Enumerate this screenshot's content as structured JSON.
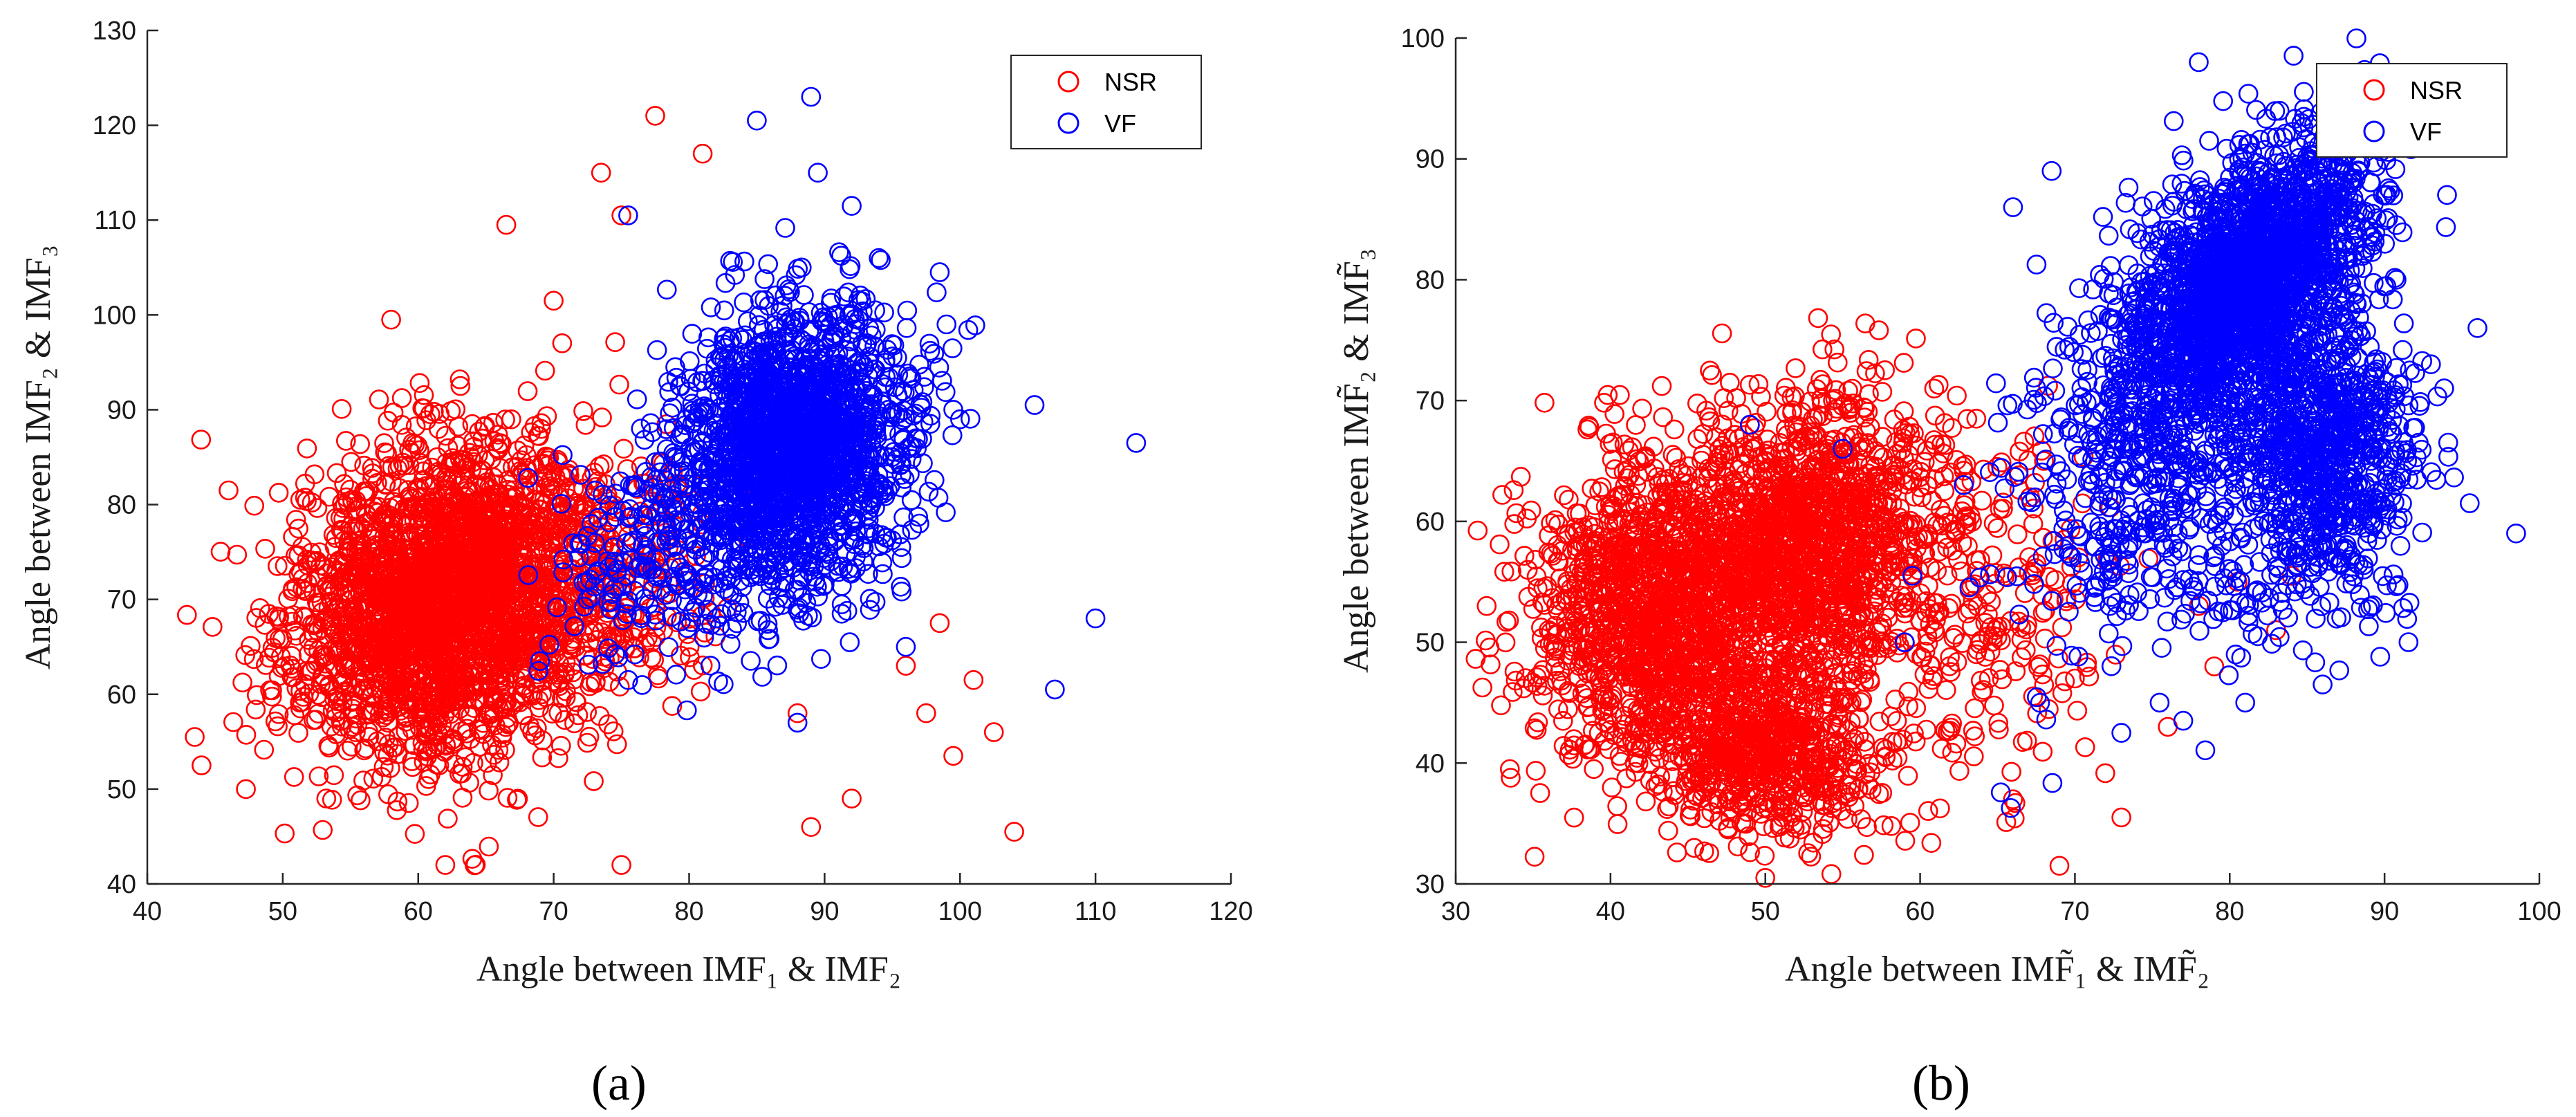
{
  "chart_data": [
    {
      "type": "scatter",
      "panel_label": "(a)",
      "xlabel": "Angle between IMF₁ & IMF₂",
      "ylabel": "Angle between IMF₂ & IMF₃",
      "xlim": [
        40,
        120
      ],
      "ylim": [
        40,
        130
      ],
      "xticks": [
        40,
        50,
        60,
        70,
        80,
        90,
        100,
        110,
        120
      ],
      "yticks": [
        40,
        50,
        60,
        70,
        80,
        90,
        100,
        110,
        120,
        130
      ],
      "legend_position": "top-right",
      "series": [
        {
          "name": "NSR",
          "color": "#ff0000",
          "seed": 11,
          "clusters": [
            {
              "n": 2600,
              "mx": 62,
              "my": 70,
              "sx": 5.5,
              "sy": 8,
              "rho": 0.15
            },
            {
              "n": 260,
              "mx": 74,
              "my": 72,
              "sx": 5,
              "sy": 7,
              "rho": 0
            }
          ],
          "points": [
            [
              77.5,
              121
            ],
            [
              81,
              117
            ],
            [
              73.5,
              115
            ],
            [
              66.5,
              109.5
            ],
            [
              75,
              110.5
            ],
            [
              104,
              45.5
            ],
            [
              102.5,
              56
            ],
            [
              101,
              61.5
            ],
            [
              99.5,
              53.5
            ],
            [
              97.5,
              58
            ],
            [
              98.5,
              67.5
            ],
            [
              89,
              46
            ],
            [
              75,
              42
            ],
            [
              62,
              42
            ],
            [
              44,
              52.5
            ],
            [
              43.5,
              55.5
            ],
            [
              46,
              81.5
            ],
            [
              58,
              99.5
            ],
            [
              70,
              101.5
            ],
            [
              88,
              58
            ],
            [
              92,
              49
            ],
            [
              96,
              63
            ]
          ]
        },
        {
          "name": "VF",
          "color": "#0000ff",
          "seed": 23,
          "clusters": [
            {
              "n": 1900,
              "mx": 87.5,
              "my": 86,
              "sx": 4,
              "sy": 7,
              "rho": 0.1
            },
            {
              "n": 220,
              "mx": 78,
              "my": 74,
              "sx": 5,
              "sy": 6,
              "rho": 0.2
            }
          ],
          "points": [
            [
              85,
              120.5
            ],
            [
              89,
              123
            ],
            [
              89.5,
              115
            ],
            [
              92,
              111.5
            ],
            [
              98.5,
              104.5
            ],
            [
              99,
              99
            ],
            [
              105.5,
              90.5
            ],
            [
              113,
              86.5
            ],
            [
              110,
              68
            ],
            [
              107,
              60.5
            ],
            [
              99.5,
              90
            ],
            [
              97,
              78
            ],
            [
              96,
              65
            ],
            [
              88,
              57
            ],
            [
              75.5,
              61.5
            ],
            [
              69,
              63.5
            ],
            [
              72.5,
              70
            ],
            [
              75.5,
              110.5
            ],
            [
              100,
              89
            ],
            [
              94,
              106
            ]
          ]
        }
      ]
    },
    {
      "type": "scatter",
      "panel_label": "(b)",
      "xlabel": "Angle between IMF̃₁ & IMF̃₂",
      "ylabel": "Angle between IMF̃₂ & IMF̃₃",
      "xlim": [
        30,
        100
      ],
      "ylim": [
        30,
        100
      ],
      "xticks": [
        30,
        40,
        50,
        60,
        70,
        80,
        90,
        100
      ],
      "yticks": [
        30,
        40,
        50,
        60,
        70,
        80,
        90,
        100
      ],
      "legend_position": "top-right",
      "series": [
        {
          "name": "NSR",
          "color": "#ff0000",
          "seed": 37,
          "clusters": [
            {
              "n": 1300,
              "mx": 43,
              "my": 53,
              "sx": 4,
              "sy": 6,
              "rho": 0.1
            },
            {
              "n": 1400,
              "mx": 53,
              "my": 58,
              "sx": 4.5,
              "sy": 6,
              "rho": 0.1
            },
            {
              "n": 700,
              "mx": 50,
              "my": 41,
              "sx": 3.5,
              "sy": 3.5,
              "rho": 0
            },
            {
              "n": 200,
              "mx": 64,
              "my": 52,
              "sx": 4,
              "sy": 8,
              "rho": 0
            }
          ],
          "points": [
            [
              32,
              53
            ],
            [
              33.5,
              39.5
            ],
            [
              69,
              31.5
            ],
            [
              73,
              35.5
            ],
            [
              76,
              43
            ],
            [
              78,
              53
            ],
            [
              80.5,
              55
            ],
            [
              84,
              55.5
            ],
            [
              83,
              51
            ],
            [
              79,
              48
            ],
            [
              66,
              37
            ],
            [
              50,
              30.5
            ],
            [
              70,
              47
            ],
            [
              68,
              65
            ]
          ]
        },
        {
          "name": "VF",
          "color": "#0000ff",
          "seed": 53,
          "clusters": [
            {
              "n": 2000,
              "mx": 81,
              "my": 80,
              "sx": 4,
              "sy": 6,
              "rho": 0.55
            },
            {
              "n": 900,
              "mx": 86,
              "my": 66,
              "sx": 3,
              "sy": 6,
              "rho": 0
            },
            {
              "n": 500,
              "mx": 75,
              "my": 64,
              "sx": 4,
              "sy": 8,
              "rho": 0.2
            }
          ],
          "points": [
            [
              78,
              98
            ],
            [
              98.5,
              59
            ],
            [
              96,
              76
            ],
            [
              95.5,
              61.5
            ],
            [
              93,
              73
            ],
            [
              86,
              46.5
            ],
            [
              81,
              45
            ],
            [
              77,
              43.5
            ],
            [
              73,
              42.5
            ],
            [
              59.5,
              55.5
            ],
            [
              59,
              50
            ],
            [
              49,
              68
            ],
            [
              55,
              66
            ],
            [
              66,
              86
            ],
            [
              68.5,
              89
            ],
            [
              87,
              96
            ]
          ]
        }
      ]
    }
  ]
}
